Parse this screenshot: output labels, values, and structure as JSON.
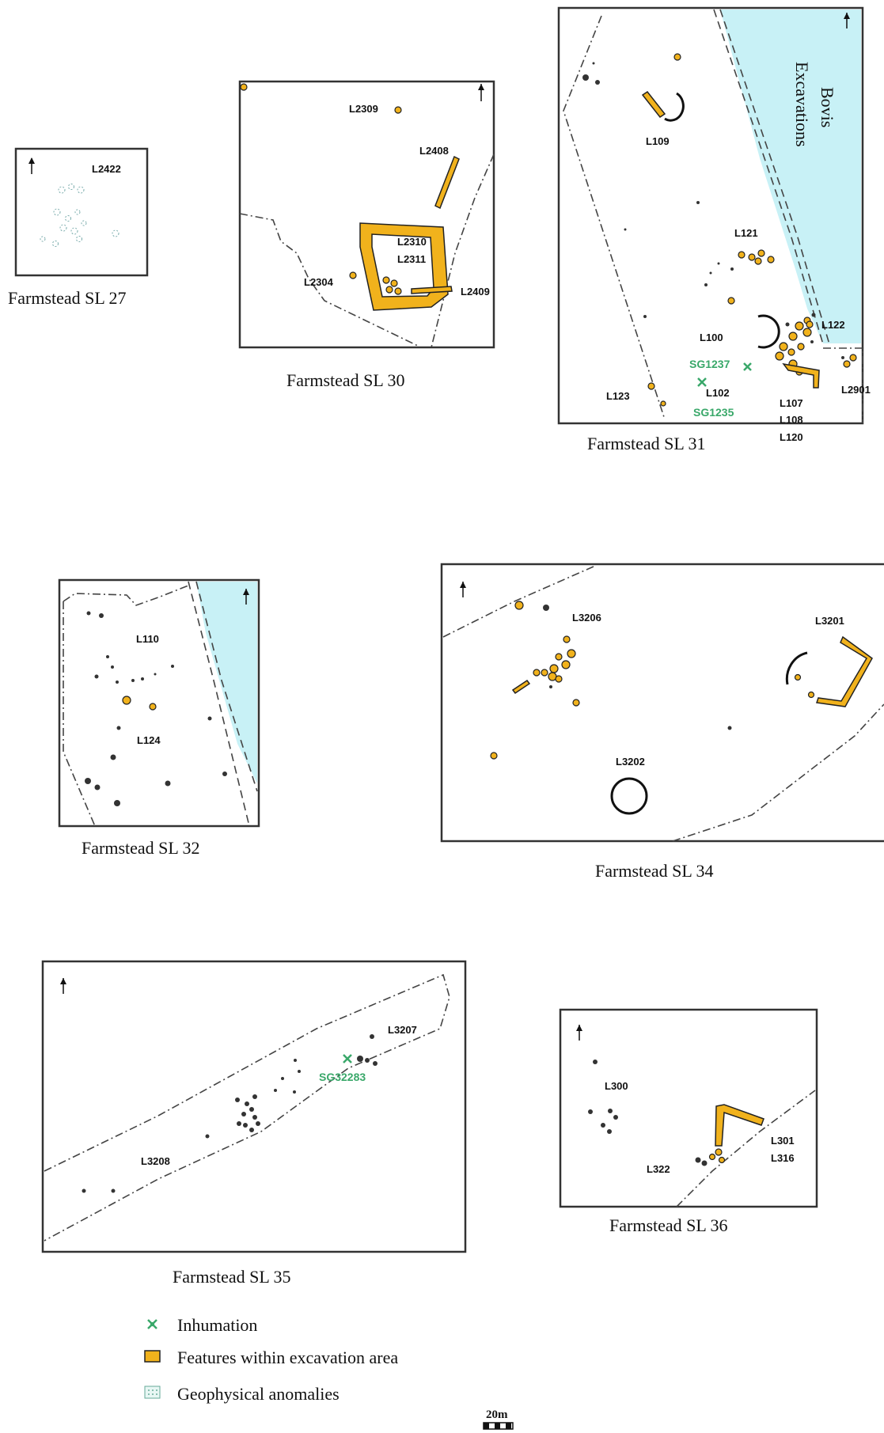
{
  "farmsteads": {
    "sl27": {
      "caption": "Farmstead SL 27",
      "labels": [
        "L2422"
      ]
    },
    "sl30": {
      "caption": "Farmstead SL 30",
      "labels": [
        "L2309",
        "L2408",
        "L2310",
        "L2311",
        "L2304",
        "L2409"
      ]
    },
    "sl31": {
      "caption": "Farmstead SL 31",
      "labels": [
        "L109",
        "L121",
        "L100",
        "L122",
        "L123",
        "L102",
        "L107",
        "L108",
        "L120",
        "L2901"
      ],
      "green_labels": [
        "SG1237",
        "SG1235"
      ],
      "bovis_label_1": "Bovis",
      "bovis_label_2": "Excavations"
    },
    "sl32": {
      "caption": "Farmstead SL 32",
      "labels": [
        "L110",
        "L124"
      ]
    },
    "sl34": {
      "caption": "Farmstead SL 34",
      "labels": [
        "L3206",
        "L3201",
        "L3202"
      ]
    },
    "sl35": {
      "caption": "Farmstead SL 35",
      "labels": [
        "L3207",
        "L3208"
      ],
      "green_labels": [
        "SG32283"
      ]
    },
    "sl36": {
      "caption": "Farmstead SL 36",
      "labels": [
        "L300",
        "L301",
        "L316",
        "L322"
      ]
    }
  },
  "legend": {
    "inhumation": "Inhumation",
    "features": "Features within excavation area",
    "geophysical": "Geophysical anomalies"
  },
  "scale_bar": {
    "label": "20m"
  },
  "colors": {
    "feature_fill": "#f1b21c",
    "inhumation": "#3aa86a",
    "excavation_area": "#c8f1f6"
  }
}
